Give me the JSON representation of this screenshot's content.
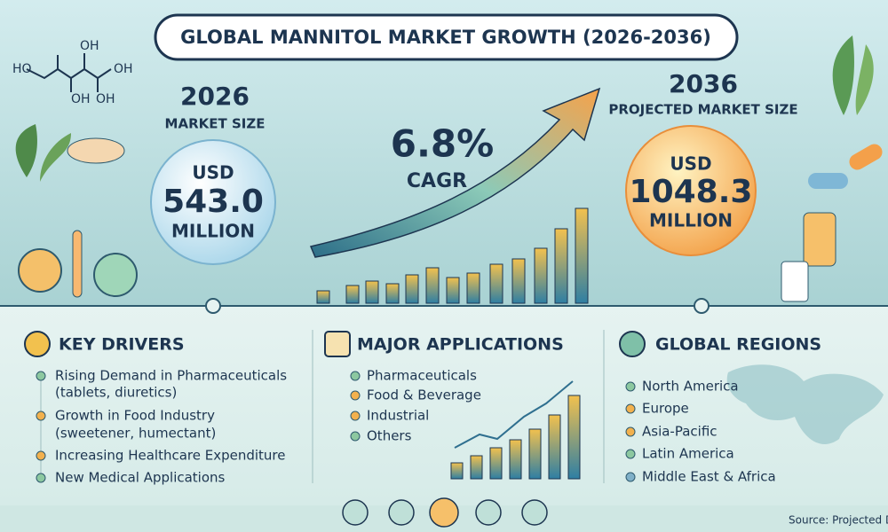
{
  "header": {
    "title": "GLOBAL MANNITOL MARKET GROWTH (2026-2036)"
  },
  "molecule": {
    "labels": [
      "HO",
      "OH",
      "OH",
      "OH",
      "OH"
    ]
  },
  "start": {
    "year": "2026",
    "label": "MARKET SIZE",
    "currency": "USD",
    "value": "543.0",
    "unit": "MILLION"
  },
  "growth": {
    "value": "6.8%",
    "label": "CAGR"
  },
  "end": {
    "year": "2036",
    "label": "PROJECTED MARKET SIZE",
    "currency": "USD",
    "value": "1048.3",
    "unit": "MILLION"
  },
  "drivers": {
    "title": "KEY DRIVERS",
    "items": [
      {
        "text": "Rising Demand in Pharmaceuticals",
        "sub": "(tablets, diuretics)"
      },
      {
        "text": "Growth in Food Industry",
        "sub": "(sweetener, humectant)"
      },
      {
        "text": "Increasing Healthcare Expenditure"
      },
      {
        "text": "New Medical Applications"
      }
    ]
  },
  "applications": {
    "title": "MAJOR APPLICATIONS",
    "items": [
      "Pharmaceuticals",
      "Food & Beverage",
      "Industrial",
      "Others"
    ]
  },
  "regions": {
    "title": "GLOBAL REGIONS",
    "items": [
      "North America",
      "Europe",
      "Asia-Pacific",
      "Latin America",
      "Middle East & Africa"
    ]
  },
  "footer": {
    "source": "Source: Projected D"
  }
}
